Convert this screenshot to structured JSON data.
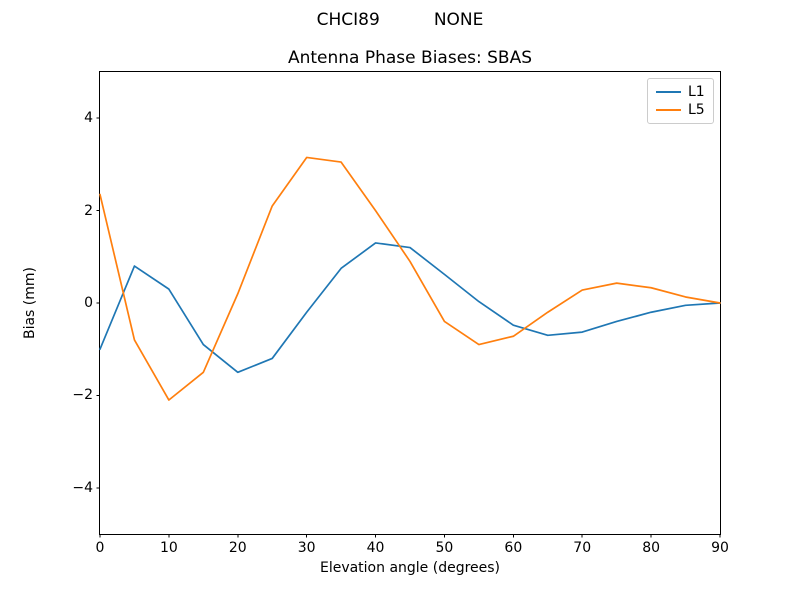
{
  "header": {
    "suptitle": "CHCI89          NONE"
  },
  "chart_data": {
    "type": "line",
    "title": "Antenna Phase Biases: SBAS",
    "xlabel": "Elevation angle (degrees)",
    "ylabel": "Bias (mm)",
    "xlim": [
      0,
      90
    ],
    "ylim": [
      -5,
      5
    ],
    "xticks": [
      0,
      10,
      20,
      30,
      40,
      50,
      60,
      70,
      80,
      90
    ],
    "yticks": [
      -4,
      -2,
      0,
      2,
      4
    ],
    "grid": false,
    "legend": {
      "position": "upper right",
      "entries": [
        "L1",
        "L5"
      ]
    },
    "x": [
      0,
      5,
      10,
      15,
      20,
      25,
      30,
      35,
      40,
      45,
      50,
      55,
      60,
      65,
      70,
      75,
      80,
      85,
      90
    ],
    "series": [
      {
        "name": "L1",
        "color": "#1f77b4",
        "values": [
          -1.0,
          0.8,
          0.3,
          -0.9,
          -1.5,
          -1.2,
          -0.2,
          0.75,
          1.3,
          1.2,
          0.62,
          0.03,
          -0.48,
          -0.7,
          -0.63,
          -0.4,
          -0.2,
          -0.05,
          0.0
        ]
      },
      {
        "name": "L5",
        "color": "#ff7f0e",
        "values": [
          2.35,
          -0.8,
          -2.1,
          -1.5,
          0.2,
          2.1,
          3.15,
          3.05,
          2.0,
          0.9,
          -0.4,
          -0.9,
          -0.72,
          -0.2,
          0.28,
          0.43,
          0.33,
          0.13,
          0.0
        ]
      }
    ]
  }
}
